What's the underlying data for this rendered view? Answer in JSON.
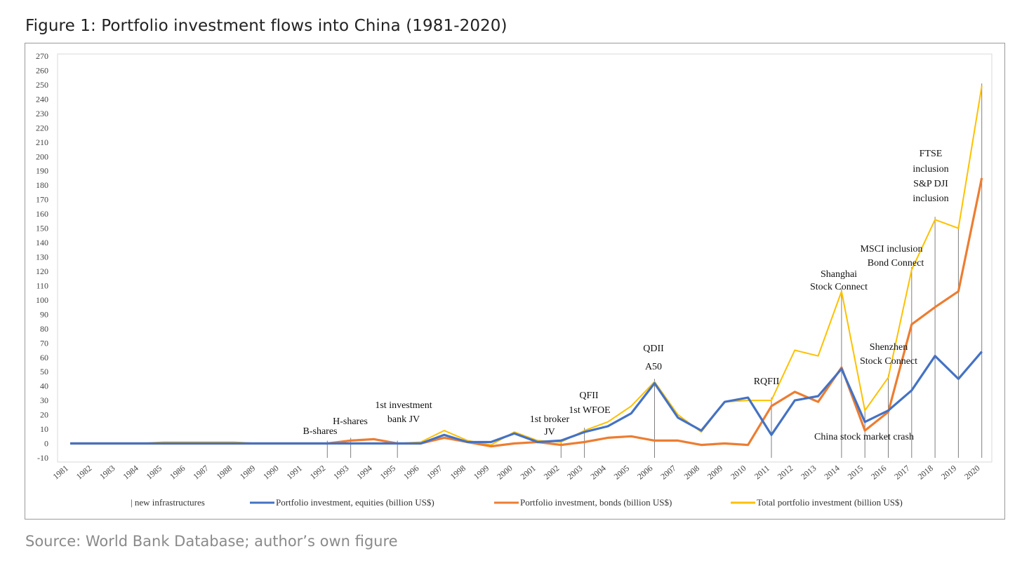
{
  "title": "Figure 1: Portfolio investment flows into China (1981-2020)",
  "source": "Source: World Bank Database; author’s own figure",
  "chart_data": {
    "type": "line",
    "categories": [
      "1981",
      "1982",
      "1983",
      "1984",
      "1985",
      "1986",
      "1987",
      "1988",
      "1989",
      "1990",
      "1991",
      "1992",
      "1993",
      "1994",
      "1995",
      "1996",
      "1997",
      "1998",
      "1999",
      "2000",
      "2001",
      "2002",
      "2003",
      "2004",
      "2005",
      "2006",
      "2007",
      "2008",
      "2009",
      "2010",
      "2011",
      "2012",
      "2013",
      "2014",
      "2015",
      "2016",
      "2017",
      "2018",
      "2019",
      "2020"
    ],
    "ylim": [
      -10,
      270
    ],
    "yticks": [
      -10,
      0,
      10,
      20,
      30,
      40,
      50,
      60,
      70,
      80,
      90,
      100,
      110,
      120,
      130,
      140,
      150,
      160,
      170,
      180,
      190,
      200,
      210,
      220,
      230,
      240,
      250,
      260,
      270
    ],
    "series": [
      {
        "name": "Portfolio investment, equities (billion US$)",
        "color": "#4472c4",
        "values": [
          0,
          0,
          0,
          0,
          0,
          0,
          0,
          0,
          0,
          0,
          0,
          0,
          0,
          0,
          0,
          0,
          6,
          1,
          1,
          7,
          1,
          2,
          8,
          12,
          21,
          42,
          18,
          9,
          29,
          32,
          6,
          30,
          33,
          52,
          15,
          23,
          37,
          61,
          45,
          64
        ]
      },
      {
        "name": "Portfolio investment, bonds (billion US$)",
        "color": "#ed7d31",
        "values": [
          0,
          0,
          0,
          0,
          0,
          0,
          0,
          0,
          0,
          0,
          0,
          0,
          2,
          3,
          0,
          0,
          4,
          1,
          -2,
          0,
          1,
          -1,
          1,
          4,
          5,
          2,
          2,
          -1,
          0,
          -1,
          26,
          36,
          29,
          53,
          9,
          22,
          83,
          95,
          106,
          185
        ]
      },
      {
        "name": "Total portfolio investment (billion US$)",
        "color": "#ffc000",
        "values": [
          0,
          0,
          0,
          0,
          1,
          1,
          1,
          1,
          0,
          0,
          0,
          0,
          2,
          3,
          0,
          1,
          9,
          2,
          -1,
          8,
          2,
          1,
          9,
          15,
          26,
          43,
          20,
          8,
          29,
          30,
          30,
          65,
          61,
          106,
          23,
          46,
          121,
          156,
          150,
          249
        ]
      }
    ],
    "legend": [
      {
        "label": "| new infrastructures",
        "kind": "bar"
      },
      {
        "label": "Portfolio investment, equities (billion US$)",
        "kind": "line",
        "color": "#4472c4"
      },
      {
        "label": "Portfolio investment, bonds (billion US$)",
        "kind": "line",
        "color": "#ed7d31"
      },
      {
        "label": "Total portfolio investment (billion US$)",
        "kind": "line",
        "color": "#ffc000"
      }
    ],
    "legend_position": "bottom",
    "infrastructure_years": [
      "1992",
      "1993",
      "1995",
      "2002",
      "2003",
      "2006",
      "2011",
      "2014",
      "2015",
      "2016",
      "2017",
      "2018",
      "2019",
      "2020"
    ],
    "annotations": {
      "b_shares": "B-shares",
      "h_shares": "H-shares",
      "inv_bank_1": "1st investment",
      "inv_bank_2": "bank JV",
      "broker_1": "1st broker",
      "broker_2": "JV",
      "qfii": "QFII",
      "wfoe": "1st WFOE",
      "qdii": "QDII",
      "a50": "A50",
      "rqfii": "RQFII",
      "shanghai_1": "Shanghai",
      "shanghai_2": "Stock Connect",
      "crash": "China stock market crash",
      "shenzhen_1": "Shenzhen",
      "shenzhen_2": "Stock Connect",
      "msci_1": "MSCI inclusion",
      "msci_2": "Bond Connect",
      "ftse_1": "FTSE",
      "ftse_2": "inclusion",
      "ftse_3": "S&P DJI",
      "ftse_4": "inclusion"
    }
  }
}
